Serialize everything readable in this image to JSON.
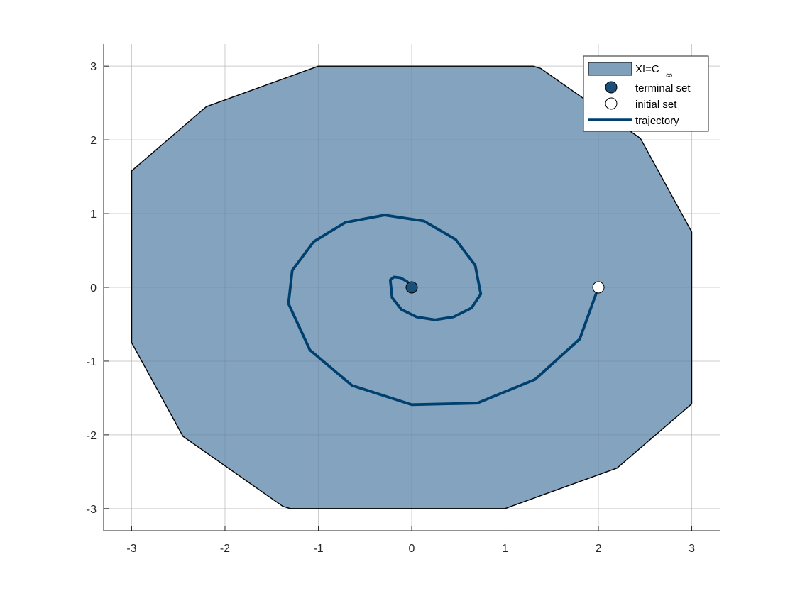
{
  "chart_data": {
    "type": "line",
    "title": "",
    "xlabel": "",
    "ylabel": "",
    "xlim": [
      -3.3,
      3.3
    ],
    "ylim": [
      -3.3,
      3.3
    ],
    "grid": true,
    "legend_position": "top-right",
    "xticks": [
      "-3",
      "-2",
      "-1",
      "0",
      "1",
      "2",
      "3"
    ],
    "yticks": [
      "-3",
      "-2",
      "-1",
      "0",
      "1",
      "2",
      "3"
    ],
    "xtick_values": [
      -3,
      -2,
      -1,
      0,
      1,
      2,
      3
    ],
    "ytick_values": [
      -3,
      -2,
      -1,
      0,
      1,
      2,
      3
    ],
    "colors": {
      "region_fill": "#7f9fbb",
      "region_edge": "#000000",
      "trajectory": "#00406f",
      "terminal_marker": "#1a4f7a",
      "initial_marker": "#ffffff"
    },
    "region": {
      "name": "Xf=C",
      "name_subscript": "∞",
      "vertices": [
        [
          -1.0,
          3.0
        ],
        [
          1.3,
          3.0
        ],
        [
          1.38,
          2.97
        ],
        [
          2.45,
          2.02
        ],
        [
          3.0,
          0.75
        ],
        [
          3.0,
          -1.58
        ],
        [
          2.2,
          -2.45
        ],
        [
          1.0,
          -3.0
        ],
        [
          -1.3,
          -3.0
        ],
        [
          -1.38,
          -2.97
        ],
        [
          -2.45,
          -2.02
        ],
        [
          -3.0,
          -0.75
        ],
        [
          -3.0,
          1.58
        ],
        [
          -2.2,
          2.45
        ]
      ]
    },
    "terminal_set": {
      "name": "terminal set",
      "x": 0,
      "y": 0
    },
    "initial_set": {
      "name": "initial set",
      "x": 2,
      "y": 0
    },
    "series": [
      {
        "name": "trajectory",
        "x": [
          2.0,
          1.8,
          1.32,
          0.7,
          0.0,
          -0.64,
          -1.09,
          -1.32,
          -1.28,
          -1.05,
          -0.71,
          -0.29,
          0.13,
          0.47,
          0.68,
          0.74,
          0.64,
          0.45,
          0.25,
          0.05,
          -0.11,
          -0.21,
          -0.23,
          -0.19,
          -0.12,
          -0.05,
          0.0
        ],
        "y": [
          0.0,
          -0.7,
          -1.25,
          -1.57,
          -1.59,
          -1.33,
          -0.85,
          -0.22,
          0.23,
          0.62,
          0.88,
          0.98,
          0.9,
          0.65,
          0.3,
          -0.09,
          -0.28,
          -0.4,
          -0.44,
          -0.4,
          -0.3,
          -0.14,
          0.1,
          0.14,
          0.13,
          0.08,
          0.0
        ]
      }
    ],
    "legend": [
      {
        "label": "Xf=C",
        "sub": "∞",
        "kind": "patch"
      },
      {
        "label": "terminal set",
        "kind": "filled-circle"
      },
      {
        "label": "initial set",
        "kind": "open-circle"
      },
      {
        "label": "trajectory",
        "kind": "line"
      }
    ]
  }
}
